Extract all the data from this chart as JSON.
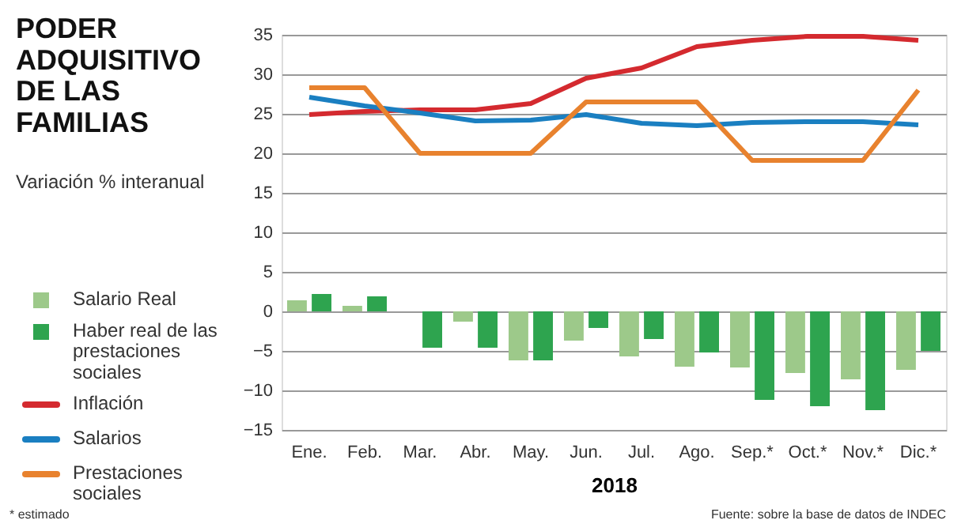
{
  "chart_data": {
    "type": "bar",
    "title": "PODER ADQUISITIVO DE LAS FAMILIAS",
    "subtitle": "Variación % interanual",
    "xlabel": "2018",
    "categories": [
      "Ene.",
      "Feb.",
      "Mar.",
      "Abr.",
      "May.",
      "Jun.",
      "Jul.",
      "Ago.",
      "Sep.*",
      "Oct.*",
      "Nov.*",
      "Dic.*"
    ],
    "series": [
      {
        "name": "Salario Real",
        "color": "#9dc98a",
        "values": [
          1.4,
          0.7,
          0,
          -1.3,
          -6.2,
          -3.7,
          -5.7,
          -7,
          -7.1,
          -7.8,
          -8.6,
          -7.4
        ]
      },
      {
        "name": "Haber real de las prestaciones sociales",
        "color": "#2ea44f",
        "values": [
          2.2,
          1.9,
          -4.6,
          -4.6,
          -6.2,
          -2.1,
          -3.5,
          -5.2,
          -11.2,
          -12,
          -12.5,
          -5
        ]
      },
      {
        "name": "Inflación",
        "type": "line",
        "color": "#d42a2f",
        "values": [
          24.9,
          25.3,
          25.5,
          25.5,
          26.3,
          29.5,
          30.8,
          33.5,
          34.3,
          34.8,
          34.8,
          34.3
        ]
      },
      {
        "name": "Salarios",
        "type": "line",
        "color": "#1a7fc1",
        "values": [
          27.1,
          26,
          25.1,
          24.1,
          24.2,
          24.9,
          23.8,
          23.5,
          23.9,
          24,
          24,
          23.6
        ]
      },
      {
        "name": "Prestaciones sociales",
        "type": "line",
        "color": "#e8822e",
        "values": [
          28.3,
          28.3,
          20,
          20,
          20,
          26.5,
          26.5,
          26.5,
          19.1,
          19.1,
          19.1,
          28
        ]
      }
    ],
    "ylim": [
      -15,
      35
    ],
    "yticks": [
      -15,
      -10,
      -5,
      0,
      5,
      10,
      15,
      20,
      25,
      30,
      35
    ],
    "grid": "y",
    "legend": "left",
    "marker": "none",
    "annotations": [
      "* estimado",
      "Fuente: sobre la base de datos de INDEC"
    ]
  }
}
